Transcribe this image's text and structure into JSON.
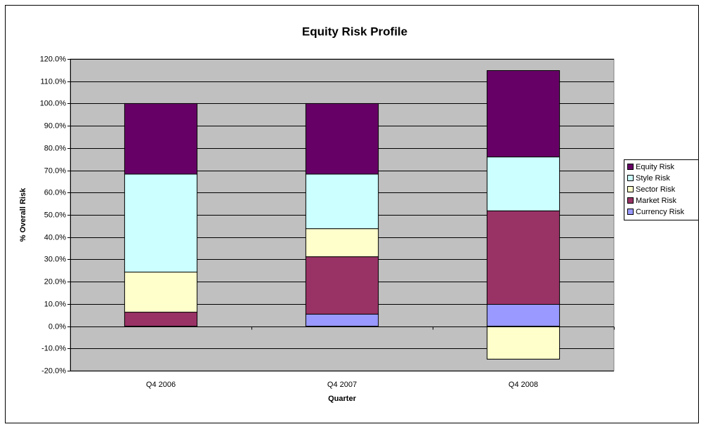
{
  "chart_data": {
    "type": "stacked-bar",
    "title": "Equity Risk Profile",
    "x_label": "Quarter",
    "y_label": "% Overall Risk",
    "categories": [
      "Q4 2006",
      "Q4 2007",
      "Q4 2008"
    ],
    "series": [
      {
        "name": "Currency Risk",
        "color": "#9999ff",
        "values": [
          0,
          5.4,
          9.8
        ]
      },
      {
        "name": "Market Risk",
        "color": "#993366",
        "values": [
          6.3,
          25.8,
          42
        ]
      },
      {
        "name": "Sector Risk",
        "color": "#ffffcc",
        "values": [
          18,
          12.6,
          -14.8
        ]
      },
      {
        "name": "Style Risk",
        "color": "#ccffff",
        "values": [
          44,
          24.5,
          24.2
        ]
      },
      {
        "name": "Equity Risk",
        "color": "#660066",
        "values": [
          31.7,
          31.7,
          38.8
        ]
      }
    ],
    "ylim": [
      -20,
      120
    ],
    "yticks": [
      {
        "value": -20,
        "label": "-20.0%"
      },
      {
        "value": -10,
        "label": "-10.0%"
      },
      {
        "value": 0,
        "label": "0.0%"
      },
      {
        "value": 10,
        "label": "10.0%"
      },
      {
        "value": 20,
        "label": "20.0%"
      },
      {
        "value": 30,
        "label": "30.0%"
      },
      {
        "value": 40,
        "label": "40.0%"
      },
      {
        "value": 50,
        "label": "50.0%"
      },
      {
        "value": 60,
        "label": "60.0%"
      },
      {
        "value": 70,
        "label": "70.0%"
      },
      {
        "value": 80,
        "label": "80.0%"
      },
      {
        "value": 90,
        "label": "90.0%"
      },
      {
        "value": 100,
        "label": "100.0%"
      },
      {
        "value": 110,
        "label": "110.0%"
      },
      {
        "value": 120,
        "label": "120.0%"
      }
    ],
    "grid": true,
    "plot_background": "#c0c0c0",
    "legend": "right"
  }
}
